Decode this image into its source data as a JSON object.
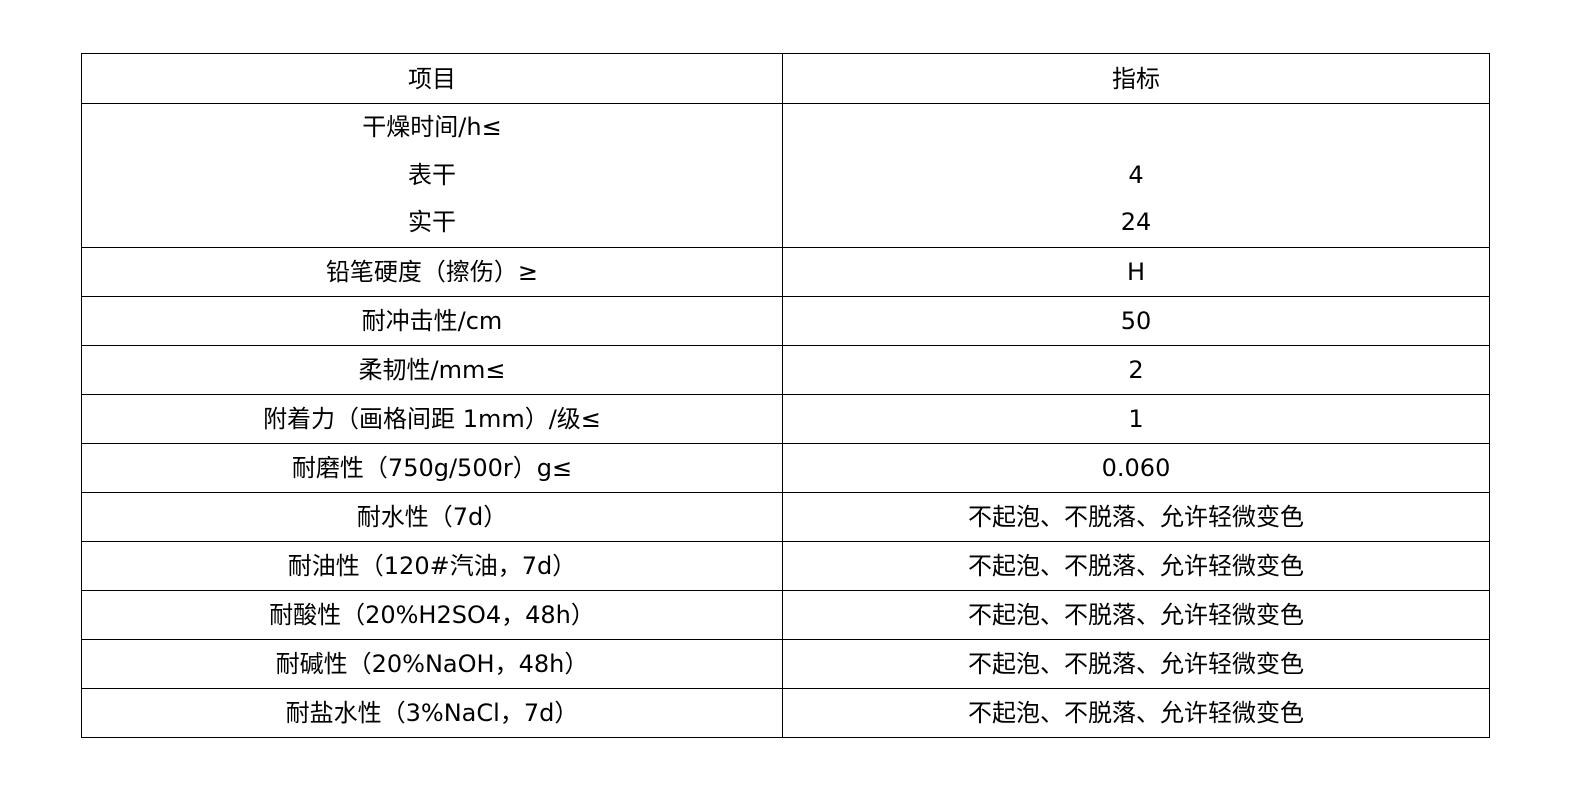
{
  "table": {
    "headers": [
      "项目",
      "指标"
    ],
    "drying": {
      "label": "干燥时间/h≤",
      "sub": [
        {
          "item": "表干",
          "value": "4"
        },
        {
          "item": "实干",
          "value": "24"
        }
      ]
    },
    "rows": [
      {
        "item": "铅笔硬度（擦伤）≥",
        "value": "H"
      },
      {
        "item": "耐冲击性/cm",
        "value": "50"
      },
      {
        "item": "柔韧性/mm≤",
        "value": "2"
      },
      {
        "item": "附着力（画格间距 1mm）/级≤",
        "value": "1"
      },
      {
        "item": "耐磨性（750g/500r）g≤",
        "value": "0.060"
      },
      {
        "item": "耐水性（7d）",
        "value": "不起泡、不脱落、允许轻微变色"
      },
      {
        "item": "耐油性（120#汽油，7d）",
        "value": "不起泡、不脱落、允许轻微变色"
      },
      {
        "item": "耐酸性（20%H2SO4，48h）",
        "value": "不起泡、不脱落、允许轻微变色"
      },
      {
        "item": "耐碱性（20%NaOH，48h）",
        "value": "不起泡、不脱落、允许轻微变色"
      },
      {
        "item": "耐盐水性（3%NaCl，7d）",
        "value": "不起泡、不脱落、允许轻微变色"
      }
    ]
  }
}
